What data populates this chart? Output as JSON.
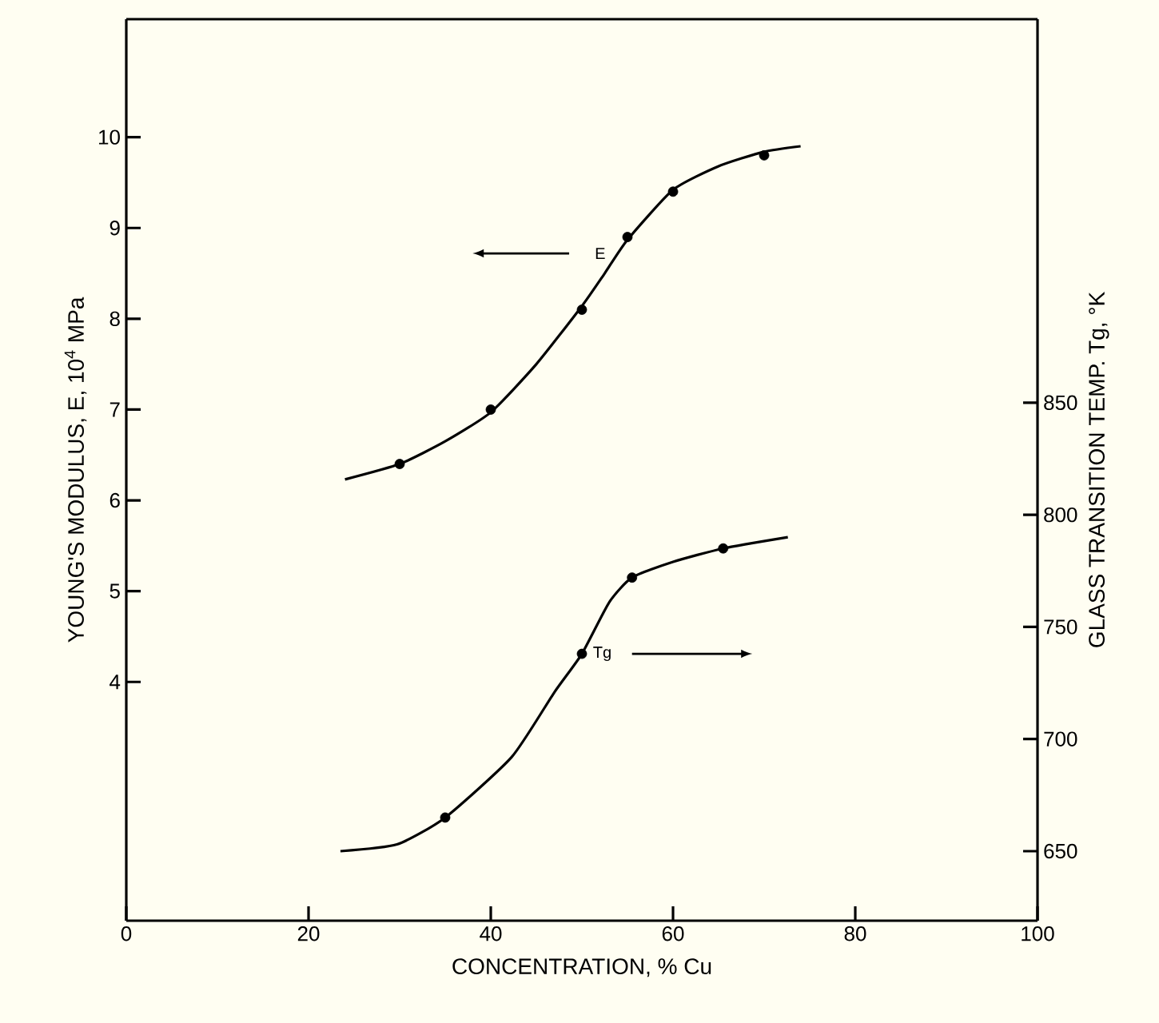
{
  "chart_data": {
    "type": "line",
    "xlabel": "CONCENTRATION, % Cu",
    "ylabel": "YOUNG'S MODULUS, E, 10$^{4}$ MPa",
    "y2label": "GLASS TRANSITION TEMP. Tg, °K",
    "xlim": [
      0,
      100
    ],
    "xticks": [
      0,
      20,
      40,
      60,
      80,
      100
    ],
    "ylim": [
      1.37,
      11.3
    ],
    "yticks": [
      4,
      5,
      6,
      7,
      8,
      9,
      10
    ],
    "y2lim": [
      619,
      1021
    ],
    "y2ticks": [
      650,
      700,
      750,
      800,
      850
    ],
    "series": [
      {
        "type": "scatter",
        "name": "E",
        "marker": "circle",
        "color": "#000000",
        "x": [
          30,
          40,
          50,
          55,
          60,
          70
        ],
        "values": [
          6.4,
          7.0,
          8.1,
          8.9,
          9.4,
          9.8
        ]
      },
      {
        "marker": "none",
        "color": "#000000",
        "x": [
          24,
          30,
          35,
          40,
          45,
          50,
          52.5,
          55,
          60,
          65,
          70,
          74
        ],
        "values": [
          6.23,
          6.4,
          6.65,
          6.97,
          7.5,
          8.14,
          8.5,
          8.87,
          9.42,
          9.68,
          9.84,
          9.9
        ]
      },
      {
        "type": "scatter",
        "name": "Tg",
        "marker": "circle",
        "axis": "y2",
        "color": "#000000",
        "x": [
          35,
          50,
          55.5,
          65.5
        ],
        "values": [
          665,
          738,
          772,
          785
        ]
      },
      {
        "marker": "none",
        "axis": "y2",
        "color": "#000000",
        "x": [
          23.5,
          29.7,
          35,
          42.3,
          47,
          50,
          53,
          55.5,
          60,
          65.5,
          72.6
        ],
        "values": [
          650,
          653,
          665,
          692,
          721,
          738,
          761,
          772,
          779,
          785,
          790
        ]
      }
    ]
  }
}
